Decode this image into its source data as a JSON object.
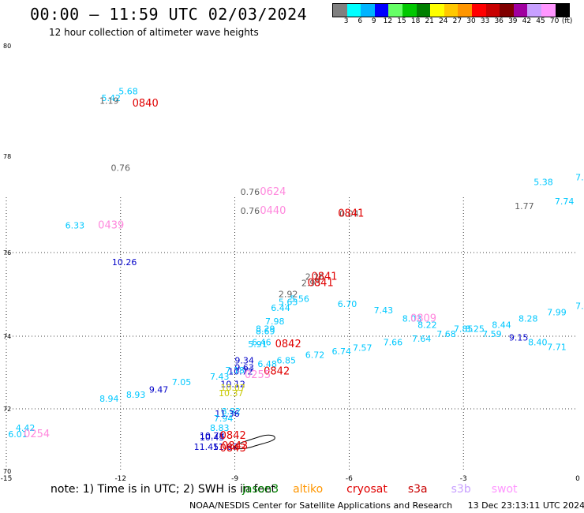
{
  "header": {
    "title": "00:00 – 11:59 UTC 02/03/2024",
    "subtitle": "12 hour collection of altimeter wave heights"
  },
  "colorbar": {
    "colors": [
      "#808080",
      "#00ffff",
      "#00b4ff",
      "#0000ff",
      "#66ff66",
      "#00c800",
      "#008000",
      "#ffff00",
      "#ffc800",
      "#ff9600",
      "#ff0000",
      "#c80000",
      "#800000",
      "#a000a0",
      "#c8a0ff",
      "#ff96ff",
      "#000000"
    ],
    "labels": [
      "3",
      "6",
      "9",
      "12",
      "15",
      "18",
      "21",
      "24",
      "27",
      "30",
      "33",
      "36",
      "39",
      "42",
      "45",
      "70"
    ],
    "unit": "(ft)"
  },
  "chart_data": {
    "type": "scatter",
    "xlim": [
      -15,
      0
    ],
    "ylim": [
      70,
      80
    ],
    "x_ticks": [
      "-15",
      "-12",
      "-9",
      "-6",
      "-3",
      "0"
    ],
    "y_ticks": [
      "80",
      "78",
      "76",
      "74",
      "72",
      "70"
    ],
    "grid": "dotted",
    "points": [
      {
        "x": -11.8,
        "y": 79.12,
        "text": "5.68",
        "color": "#00c8ff"
      },
      {
        "x": -12.25,
        "y": 79.0,
        "text": "5.42",
        "color": "#00c8ff"
      },
      {
        "x": -12.3,
        "y": 78.95,
        "text": "1.19",
        "color": "#606060"
      },
      {
        "x": -12.0,
        "y": 77.7,
        "text": "0.76",
        "color": "#606060"
      },
      {
        "x": -8.6,
        "y": 77.2,
        "text": "0.76",
        "color": "#606060"
      },
      {
        "x": -8.6,
        "y": 76.8,
        "text": "0.76",
        "color": "#606060"
      },
      {
        "x": -6.0,
        "y": 76.75,
        "text": "0.04",
        "color": "#606060"
      },
      {
        "x": -1.4,
        "y": 76.9,
        "text": "1.77",
        "color": "#606060"
      },
      {
        "x": -0.9,
        "y": 77.4,
        "text": "5.38",
        "color": "#00c8ff"
      },
      {
        "x": -0.35,
        "y": 77.0,
        "text": "7.74",
        "color": "#00c8ff"
      },
      {
        "x": 0.05,
        "y": 77.5,
        "text": "7.",
        "color": "#00c8ff"
      },
      {
        "x": -13.2,
        "y": 76.5,
        "text": "6.33",
        "color": "#00c8ff"
      },
      {
        "x": -11.9,
        "y": 75.7,
        "text": "10.26",
        "color": "#0000c8"
      },
      {
        "x": -6.9,
        "y": 75.35,
        "text": "2.26",
        "color": "#606060"
      },
      {
        "x": -7.0,
        "y": 75.2,
        "text": "2.93",
        "color": "#606060"
      },
      {
        "x": -7.6,
        "y": 74.93,
        "text": "2.92",
        "color": "#606060"
      },
      {
        "x": -7.3,
        "y": 74.82,
        "text": "5.56",
        "color": "#00c8ff"
      },
      {
        "x": -7.6,
        "y": 74.75,
        "text": "5.63",
        "color": "#00c8ff"
      },
      {
        "x": -7.8,
        "y": 74.6,
        "text": "6.44",
        "color": "#00c8ff"
      },
      {
        "x": -6.05,
        "y": 74.7,
        "text": "6.70",
        "color": "#00c8ff"
      },
      {
        "x": -5.1,
        "y": 74.55,
        "text": "7.43",
        "color": "#00c8ff"
      },
      {
        "x": -4.35,
        "y": 74.35,
        "text": "8.03",
        "color": "#00c8ff"
      },
      {
        "x": -7.95,
        "y": 74.28,
        "text": "7.98",
        "color": "#00c8ff"
      },
      {
        "x": -3.95,
        "y": 74.2,
        "text": "8.22",
        "color": "#00c8ff"
      },
      {
        "x": -8.2,
        "y": 74.1,
        "text": "8.29",
        "color": "#00c8ff"
      },
      {
        "x": -8.2,
        "y": 74.05,
        "text": "8.69",
        "color": "#00c8ff"
      },
      {
        "x": -3.0,
        "y": 74.1,
        "text": "7.85",
        "color": "#00c8ff"
      },
      {
        "x": -2.7,
        "y": 74.1,
        "text": "8.25",
        "color": "#00c8ff"
      },
      {
        "x": -2.0,
        "y": 74.2,
        "text": "8.44",
        "color": "#00c8ff"
      },
      {
        "x": -1.3,
        "y": 74.35,
        "text": "8.28",
        "color": "#00c8ff"
      },
      {
        "x": -0.55,
        "y": 74.5,
        "text": "7.99",
        "color": "#00c8ff"
      },
      {
        "x": 0.05,
        "y": 74.65,
        "text": "7.",
        "color": "#00c8ff"
      },
      {
        "x": -3.45,
        "y": 73.98,
        "text": "7.68",
        "color": "#00c8ff"
      },
      {
        "x": -2.25,
        "y": 73.98,
        "text": "7.59",
        "color": "#00c8ff"
      },
      {
        "x": -4.1,
        "y": 73.85,
        "text": "7.64",
        "color": "#00c8ff"
      },
      {
        "x": -1.55,
        "y": 73.88,
        "text": "9.15",
        "color": "#0000c8"
      },
      {
        "x": -4.85,
        "y": 73.75,
        "text": "7.66",
        "color": "#00c8ff"
      },
      {
        "x": -1.05,
        "y": 73.75,
        "text": "8.40",
        "color": "#00c8ff"
      },
      {
        "x": -0.55,
        "y": 73.62,
        "text": "7.71",
        "color": "#00c8ff"
      },
      {
        "x": -8.3,
        "y": 73.75,
        "text": "6.46",
        "color": "#00c8ff"
      },
      {
        "x": -8.4,
        "y": 73.7,
        "text": "5.91",
        "color": "#00c8ff"
      },
      {
        "x": -5.65,
        "y": 73.6,
        "text": "7.57",
        "color": "#00c8ff"
      },
      {
        "x": -6.2,
        "y": 73.5,
        "text": "6.74",
        "color": "#00c8ff"
      },
      {
        "x": -6.9,
        "y": 73.4,
        "text": "6.72",
        "color": "#00c8ff"
      },
      {
        "x": -8.75,
        "y": 73.25,
        "text": "9.34",
        "color": "#0000c8"
      },
      {
        "x": -7.65,
        "y": 73.25,
        "text": "6.85",
        "color": "#00c8ff"
      },
      {
        "x": -8.15,
        "y": 73.15,
        "text": "6.48",
        "color": "#00c8ff"
      },
      {
        "x": -8.75,
        "y": 73.05,
        "text": "9.63",
        "color": "#0000c8"
      },
      {
        "x": -9.0,
        "y": 72.98,
        "text": "7.18",
        "color": "#00c8ff"
      },
      {
        "x": -8.85,
        "y": 72.95,
        "text": "10.72",
        "color": "#0000c8"
      },
      {
        "x": -9.4,
        "y": 72.8,
        "text": "7.43",
        "color": "#00c8ff"
      },
      {
        "x": -9.05,
        "y": 72.6,
        "text": "10.12",
        "color": "#0000c8"
      },
      {
        "x": -9.05,
        "y": 72.5,
        "text": "10.07",
        "color": "#c8c800"
      },
      {
        "x": -10.4,
        "y": 72.65,
        "text": "7.05",
        "color": "#00c8ff"
      },
      {
        "x": -11.0,
        "y": 72.45,
        "text": "9.47",
        "color": "#0000c8"
      },
      {
        "x": -11.6,
        "y": 72.3,
        "text": "8.93",
        "color": "#00c8ff"
      },
      {
        "x": -12.3,
        "y": 72.2,
        "text": "8.94",
        "color": "#00c8ff"
      },
      {
        "x": -9.1,
        "y": 72.35,
        "text": "10.37",
        "color": "#c8c800"
      },
      {
        "x": -9.1,
        "y": 71.82,
        "text": "8.92",
        "color": "#00c8ff"
      },
      {
        "x": -9.2,
        "y": 71.75,
        "text": "11.36",
        "color": "#0000c8"
      },
      {
        "x": -9.3,
        "y": 71.6,
        "text": "7.94",
        "color": "#00c8ff"
      },
      {
        "x": -9.4,
        "y": 71.3,
        "text": "8.83",
        "color": "#00c8ff"
      },
      {
        "x": -9.6,
        "y": 71.05,
        "text": "10.78",
        "color": "#0000c8"
      },
      {
        "x": -9.6,
        "y": 71.0,
        "text": "10.45",
        "color": "#0000c8"
      },
      {
        "x": -9.75,
        "y": 70.7,
        "text": "11.45",
        "color": "#0000c8"
      },
      {
        "x": -9.25,
        "y": 70.7,
        "text": "11.67",
        "color": "#0000c8"
      },
      {
        "x": -14.5,
        "y": 71.3,
        "text": "4.42",
        "color": "#00c8ff"
      },
      {
        "x": -14.7,
        "y": 71.1,
        "text": "6.01",
        "color": "#00c8ff"
      }
    ],
    "track_labels": [
      {
        "x": -11.35,
        "y": 78.9,
        "text": "0840",
        "color": "#e00000"
      },
      {
        "x": -8.0,
        "y": 77.2,
        "text": "0624",
        "color": "#ff88dd"
      },
      {
        "x": -8.0,
        "y": 76.8,
        "text": "0440",
        "color": "#ff88dd"
      },
      {
        "x": -5.95,
        "y": 76.75,
        "text": "0841",
        "color": "#e00000"
      },
      {
        "x": -12.25,
        "y": 76.5,
        "text": "0439",
        "color": "#ff88dd"
      },
      {
        "x": -6.65,
        "y": 75.35,
        "text": "0841",
        "color": "#e00000"
      },
      {
        "x": -6.75,
        "y": 75.2,
        "text": "0841",
        "color": "#e00000"
      },
      {
        "x": -4.05,
        "y": 74.35,
        "text": "0809",
        "color": "#ff88dd"
      },
      {
        "x": -7.6,
        "y": 73.7,
        "text": "0842",
        "color": "#e00000"
      },
      {
        "x": -7.9,
        "y": 72.95,
        "text": "0842",
        "color": "#e00000"
      },
      {
        "x": -8.4,
        "y": 72.85,
        "text": "0255",
        "color": "#ff88dd"
      },
      {
        "x": -9.05,
        "y": 71.05,
        "text": "0842",
        "color": "#e00000"
      },
      {
        "x": -9.0,
        "y": 70.72,
        "text": "0843",
        "color": "#e00000"
      },
      {
        "x": -9.05,
        "y": 70.65,
        "text": "0843",
        "color": "#e00000"
      },
      {
        "x": -14.2,
        "y": 71.1,
        "text": "0254",
        "color": "#ff88dd"
      }
    ]
  },
  "footnote": {
    "prefix": "note:  1) Time is in UTC;  2) SWH is in feet",
    "satellites": [
      {
        "name": "jason3",
        "color": "#008000"
      },
      {
        "name": "altiko",
        "color": "#ff9600"
      },
      {
        "name": "cryosat",
        "color": "#e00000"
      },
      {
        "name": "s3a",
        "color": "#c80000"
      },
      {
        "name": "s3b",
        "color": "#c8a0ff"
      },
      {
        "name": "swot",
        "color": "#ff96ff"
      }
    ]
  },
  "footer": {
    "credit": "NOAA/NESDIS Center for Satellite Applications and Research",
    "timestamp": "13 Dec 23:13:11 UTC 2024"
  }
}
